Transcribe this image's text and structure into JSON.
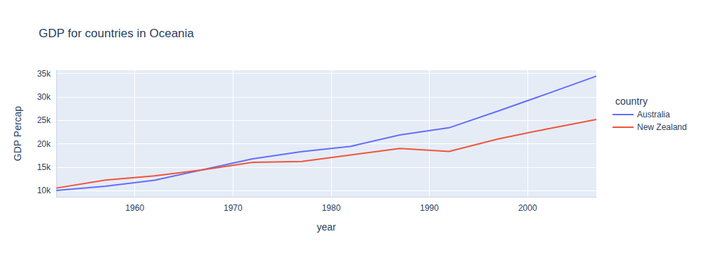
{
  "chart_data": {
    "type": "line",
    "title": "GDP for countries in Oceania",
    "x_label": "year",
    "y_label": "GDP Percap",
    "legend_title": "country",
    "x": [
      1952,
      1957,
      1962,
      1967,
      1972,
      1977,
      1982,
      1987,
      1992,
      1997,
      2002,
      2007
    ],
    "series": [
      {
        "name": "Australia",
        "color": "#636efa",
        "values": [
          10039.6,
          10949.65,
          12217.23,
          14526.12,
          16788.63,
          18334.2,
          19477.01,
          21888.89,
          23424.77,
          26997.94,
          30687.75,
          34435.37
        ]
      },
      {
        "name": "New Zealand",
        "color": "#EF553B",
        "values": [
          10556.58,
          12247.4,
          13175.68,
          14463.92,
          16046.04,
          16233.72,
          17632.41,
          19007.19,
          18363.32,
          21050.41,
          23189.8,
          25185.01
        ]
      }
    ],
    "xlim": [
      1952,
      2007
    ],
    "xticks": [
      1960,
      1970,
      1980,
      1990,
      2000
    ],
    "ylim": [
      8700,
      35700
    ],
    "yticks": [
      {
        "value": 10000,
        "label": "10k"
      },
      {
        "value": 15000,
        "label": "15k"
      },
      {
        "value": 20000,
        "label": "20k"
      },
      {
        "value": 25000,
        "label": "25k"
      },
      {
        "value": 30000,
        "label": "30k"
      },
      {
        "value": 35000,
        "label": "35k"
      }
    ],
    "grid": true,
    "legend": "right"
  }
}
